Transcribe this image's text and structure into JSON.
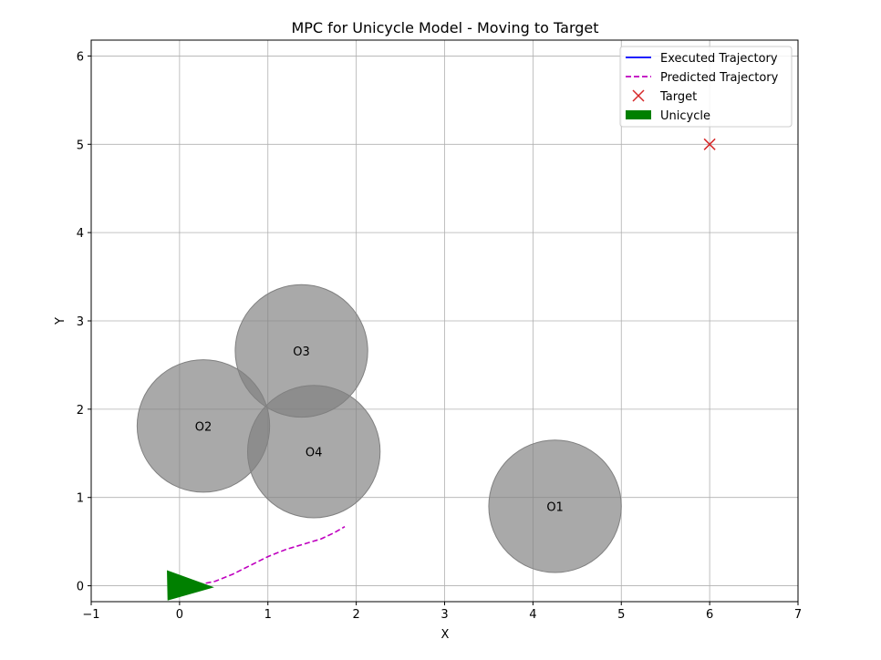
{
  "chart_data": {
    "type": "scatter",
    "title": "MPC for Unicycle Model - Moving to Target",
    "xlabel": "X",
    "ylabel": "Y",
    "xlim": [
      -1,
      7
    ],
    "ylim": [
      -0.18,
      6.18
    ],
    "xticks": [
      -1,
      0,
      1,
      2,
      3,
      4,
      5,
      6,
      7
    ],
    "yticks": [
      0,
      1,
      2,
      3,
      4,
      5,
      6
    ],
    "grid": true,
    "legend_position": "upper right",
    "legend": [
      {
        "label": "Executed Trajectory",
        "style": "solid-line",
        "color": "#0000ff"
      },
      {
        "label": "Predicted Trajectory",
        "style": "dashed-line",
        "color": "#bf00bf"
      },
      {
        "label": "Target",
        "style": "x-marker",
        "color": "#d62728"
      },
      {
        "label": "Unicycle",
        "style": "patch",
        "color": "#008000"
      }
    ],
    "obstacles": [
      {
        "label": "O1",
        "x": 4.25,
        "y": 0.9,
        "r": 0.75
      },
      {
        "label": "O2",
        "x": 0.27,
        "y": 1.81,
        "r": 0.75
      },
      {
        "label": "O3",
        "x": 1.38,
        "y": 2.66,
        "r": 0.75
      },
      {
        "label": "O4",
        "x": 1.52,
        "y": 1.52,
        "r": 0.75
      }
    ],
    "obstacle_color": "#808080",
    "target": {
      "x": 6,
      "y": 5
    },
    "executed_trajectory": {
      "x": [
        0.0,
        0.02
      ],
      "y": [
        0.0,
        0.0
      ]
    },
    "predicted_trajectory": {
      "x": [
        0.02,
        0.2,
        0.4,
        0.6,
        0.8,
        1.0,
        1.2,
        1.4,
        1.6,
        1.75,
        1.87
      ],
      "y": [
        0.0,
        0.01,
        0.05,
        0.13,
        0.23,
        0.33,
        0.41,
        0.47,
        0.53,
        0.6,
        0.67
      ]
    },
    "unicycle": {
      "x": 0.0,
      "y": 0.0,
      "heading_deg": -4
    }
  }
}
